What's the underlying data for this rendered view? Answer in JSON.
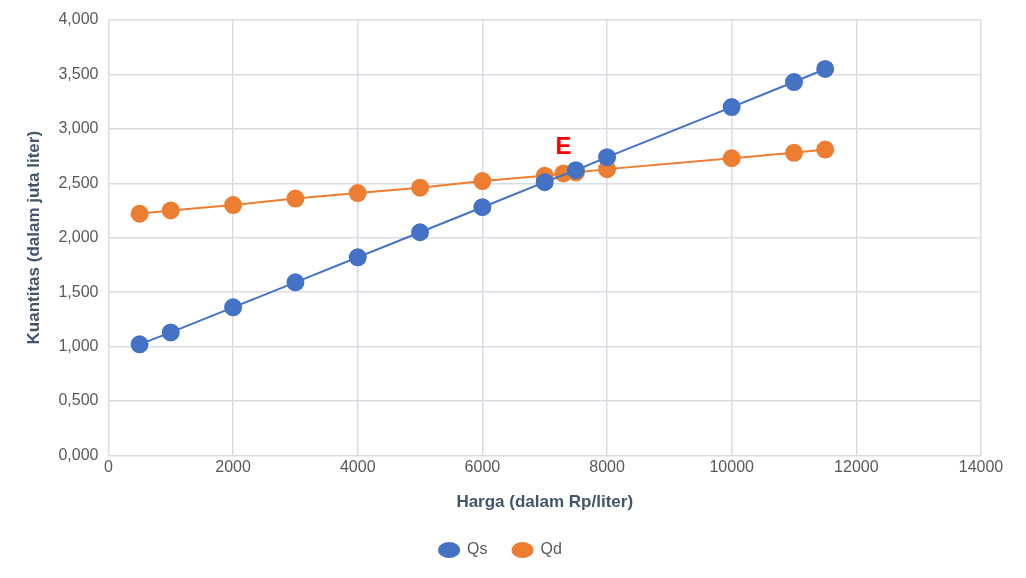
{
  "chart_data": {
    "type": "line",
    "xlabel": "Harga (dalam Rp/liter)",
    "ylabel": "Kuantitas (dalam juta liter)",
    "series": [
      {
        "name": "Qs",
        "color": "#4472c4",
        "x": [
          500,
          1000,
          2000,
          3000,
          4000,
          5000,
          6000,
          7000,
          7500,
          8000,
          10000,
          11000,
          11500
        ],
        "values": [
          1.02,
          1.13,
          1.36,
          1.59,
          1.82,
          2.05,
          2.28,
          2.51,
          2.62,
          2.74,
          3.2,
          3.43,
          3.55
        ]
      },
      {
        "name": "Qd",
        "color": "#ed7d31",
        "x": [
          500,
          1000,
          2000,
          3000,
          4000,
          5000,
          6000,
          7000,
          7300,
          7500,
          8000,
          10000,
          11000,
          11500
        ],
        "values": [
          2.22,
          2.25,
          2.3,
          2.36,
          2.41,
          2.46,
          2.52,
          2.57,
          2.59,
          2.6,
          2.63,
          2.73,
          2.78,
          2.81
        ]
      }
    ],
    "xlim": [
      0,
      14000
    ],
    "xticks": [
      0,
      2000,
      4000,
      6000,
      8000,
      10000,
      12000,
      14000
    ],
    "ylim": [
      0,
      4
    ],
    "yticks": [
      {
        "value": 0,
        "label": "0,000"
      },
      {
        "value": 0.5,
        "label": "0,500"
      },
      {
        "value": 1,
        "label": "1,000"
      },
      {
        "value": 1.5,
        "label": "1,500"
      },
      {
        "value": 2,
        "label": "2,000"
      },
      {
        "value": 2.5,
        "label": "2,500"
      },
      {
        "value": 3,
        "label": "3,000"
      },
      {
        "value": 3.5,
        "label": "3,500"
      },
      {
        "value": 4,
        "label": "4,000"
      }
    ],
    "annotations": [
      {
        "text": "E",
        "x": 7300,
        "y": 2.59
      }
    ],
    "grid": true,
    "legend": "bottom",
    "marker": "circle",
    "line_style": "solid"
  }
}
